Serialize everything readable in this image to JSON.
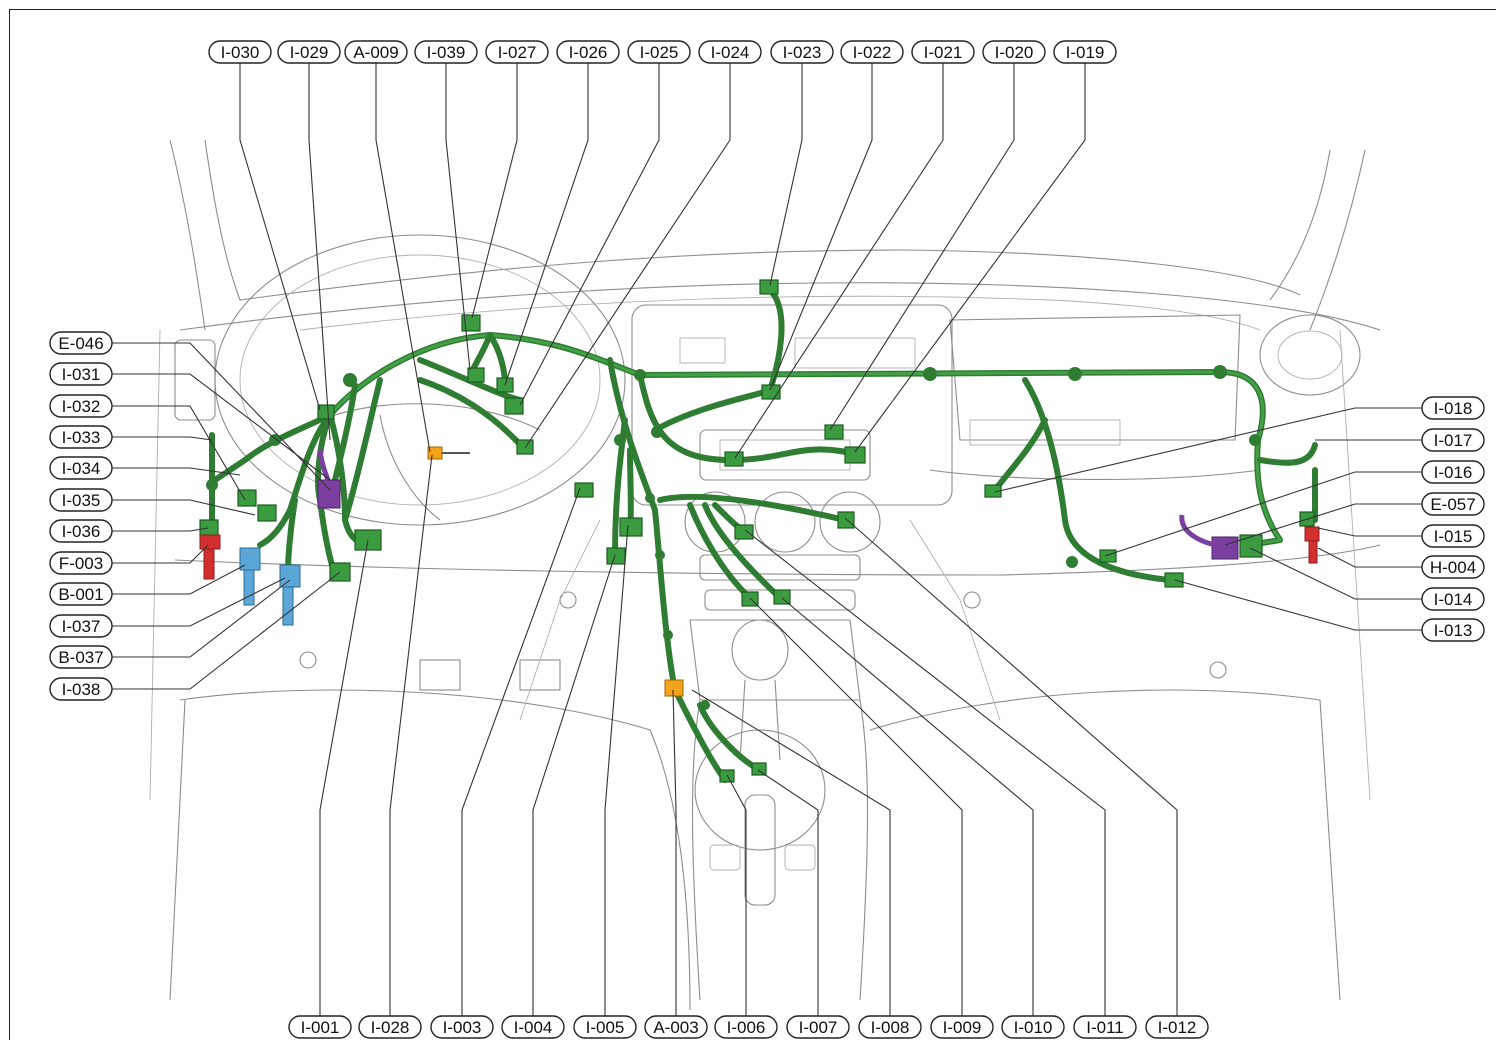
{
  "diagram": {
    "colors": {
      "harness": "#2f7d32",
      "harness_light": "#43a047",
      "connector": "#3a9b3f",
      "purple_connector": "#7b3fa0",
      "blue_connector": "#5aa7d8",
      "red_connector": "#d32f2f",
      "orange_connector": "#f2a31b",
      "body_lines": "#8d8d8d"
    },
    "top_labels": [
      "I-030",
      "I-029",
      "A-009",
      "I-039",
      "I-027",
      "I-026",
      "I-025",
      "I-024",
      "I-023",
      "I-022",
      "I-021",
      "I-020",
      "I-019"
    ],
    "left_labels": [
      "E-046",
      "I-031",
      "I-032",
      "I-033",
      "I-034",
      "I-035",
      "I-036",
      "F-003",
      "B-001",
      "I-037",
      "B-037",
      "I-038"
    ],
    "right_labels": [
      "I-018",
      "I-017",
      "I-016",
      "E-057",
      "I-015",
      "H-004",
      "I-014",
      "I-013"
    ],
    "bottom_labels": [
      "I-001",
      "I-028",
      "I-003",
      "I-004",
      "I-005",
      "A-003",
      "I-006",
      "I-007",
      "I-008",
      "I-009",
      "I-010",
      "I-011",
      "I-012"
    ]
  }
}
